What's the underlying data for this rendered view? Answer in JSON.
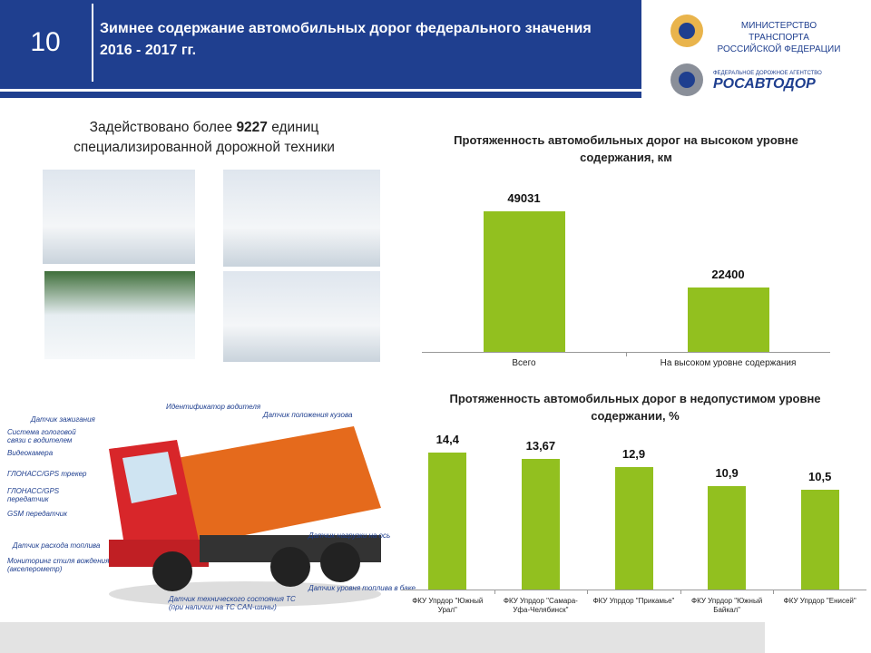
{
  "header": {
    "slide_number": "10",
    "title": "Зимнее содержание автомобильных дорог федерального значения 2016 - 2017 гг."
  },
  "logos": {
    "ministry_line1": "МИНИСТЕРСТВО ТРАНСПОРТА",
    "ministry_line2": "РОССИЙСКОЙ ФЕДЕРАЦИИ",
    "agency_small": "ФЕДЕРАЛЬНОЕ ДОРОЖНОЕ АГЕНТСТВО",
    "agency": "РОСАВТОДОР"
  },
  "intro": {
    "before": "Задействовано более",
    "number": "9227",
    "after": "единиц специализированной дорожной техники"
  },
  "truck_labels": [
    "Идентификатор водителя",
    "Датчик положения кузова",
    "Датчик зажигания",
    "Система гологовой связи с водителем",
    "Видеокамера",
    "ГЛОНАСС/GPS трекер",
    "ГЛОНАСС/GPS передатчик",
    "GSM передатчик",
    "Датчик нагрузки на ось",
    "Датчик расхода топлива",
    "Мониторинг стиля вождения (акселерометр)",
    "Датчик уровня топлива в баке",
    "Датчик технического состояния ТС (при наличии на ТС CAN-шины)"
  ],
  "chart_data": [
    {
      "type": "bar",
      "title": "Протяженность автомобильных дорог на высоком уровне содержания, км",
      "categories": [
        "Всего",
        "На высоком уровне содержания"
      ],
      "values": [
        49031,
        22400
      ],
      "color": "#92c01f",
      "ylim": [
        0,
        60000
      ]
    },
    {
      "type": "bar",
      "title": "Протяженность автомобильных дорог в недопустимом уровне содержании, %",
      "categories": [
        "ФКУ Упрдор \"Южный Урал\"",
        "ФКУ Упрдор \"Самара-Уфа-Челябинск\"",
        "ФКУ Упрдор \"Прикамье\"",
        "ФКУ Упрдор \"Южный Байкал\"",
        "ФКУ Упрдор \"Енисей\""
      ],
      "values": [
        14.4,
        13.67,
        12.9,
        10.9,
        10.5
      ],
      "value_labels": [
        "14,4",
        "13,67",
        "12,9",
        "10,9",
        "10,5"
      ],
      "color": "#92c01f",
      "ylim": [
        0,
        16
      ]
    }
  ]
}
